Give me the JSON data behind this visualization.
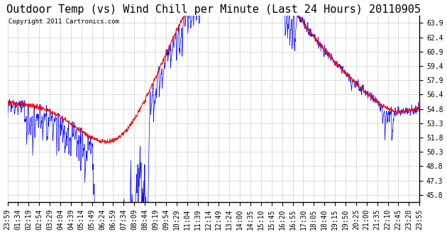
{
  "title": "Outdoor Temp (vs) Wind Chill per Minute (Last 24 Hours) 20110905",
  "copyright": "Copyright 2011 Cartronics.com",
  "y_ticks": [
    45.8,
    47.3,
    48.8,
    50.3,
    51.8,
    53.3,
    54.8,
    56.4,
    57.9,
    59.4,
    60.9,
    62.4,
    63.9
  ],
  "ylim": [
    45.0,
    64.7
  ],
  "x_labels": [
    "23:59",
    "01:34",
    "02:19",
    "02:54",
    "03:29",
    "04:04",
    "04:39",
    "05:14",
    "05:49",
    "06:24",
    "06:59",
    "07:34",
    "08:09",
    "08:44",
    "09:19",
    "09:54",
    "10:29",
    "11:04",
    "11:39",
    "12:14",
    "12:49",
    "13:24",
    "14:00",
    "14:35",
    "15:10",
    "15:45",
    "16:20",
    "16:55",
    "17:30",
    "18:05",
    "18:40",
    "19:15",
    "19:50",
    "20:25",
    "21:00",
    "21:35",
    "22:10",
    "22:45",
    "23:20",
    "23:55"
  ],
  "outdoor_color": "#ff0000",
  "windchill_color": "#0000ff",
  "background_color": "#ffffff",
  "grid_color": "#bbbbbb",
  "title_fontsize": 11,
  "copyright_fontsize": 6.5,
  "tick_fontsize": 7
}
